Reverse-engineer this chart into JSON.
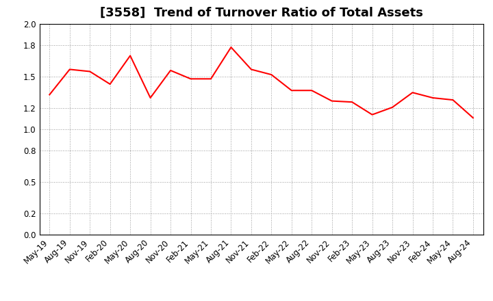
{
  "title": "[3558]  Trend of Turnover Ratio of Total Assets",
  "x_labels": [
    "May-19",
    "Aug-19",
    "Nov-19",
    "Feb-20",
    "May-20",
    "Aug-20",
    "Nov-20",
    "Feb-21",
    "May-21",
    "Aug-21",
    "Nov-21",
    "Feb-22",
    "May-22",
    "Aug-22",
    "Nov-22",
    "Feb-23",
    "May-23",
    "Aug-23",
    "Nov-23",
    "Feb-24",
    "May-24",
    "Aug-24"
  ],
  "y_values": [
    1.33,
    1.57,
    1.55,
    1.43,
    1.7,
    1.3,
    1.56,
    1.48,
    1.48,
    1.78,
    1.57,
    1.52,
    1.37,
    1.37,
    1.27,
    1.26,
    1.14,
    1.21,
    1.35,
    1.3,
    1.28,
    1.11
  ],
  "line_color": "#FF0000",
  "line_width": 1.5,
  "ylim": [
    0.0,
    2.0
  ],
  "yticks": [
    0.0,
    0.2,
    0.5,
    0.8,
    1.0,
    1.2,
    1.5,
    1.8,
    2.0
  ],
  "grid_color": "#999999",
  "background_color": "#FFFFFF",
  "title_fontsize": 13,
  "tick_fontsize": 8.5
}
